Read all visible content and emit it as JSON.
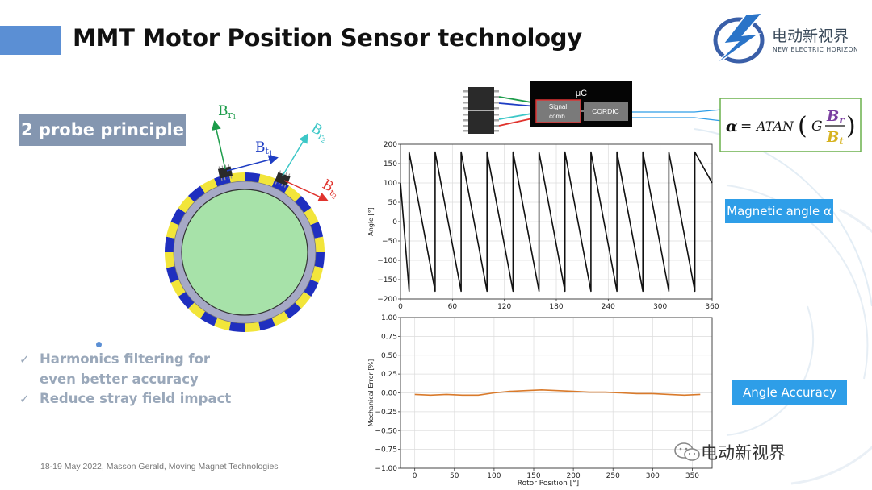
{
  "slide": {
    "title": "MMT Motor Position Sensor technology",
    "logo": {
      "cn": "电动新视界",
      "en": "NEW ELECTRIC HORIZON"
    },
    "probe_box": "2 probe principle",
    "bullets": [
      {
        "line1": "Harmonics filtering for",
        "line2": "even better accuracy"
      },
      {
        "line1": "Reduce stray field impact"
      }
    ],
    "check_glyph": "✓",
    "footer": "18-19 May 2022, Masson Gerald, Moving Magnet Technologies",
    "magnetic_angle_label": "Magnetic angle α",
    "angle_accuracy_label": "Angle Accuracy",
    "wechat_label": "电动新视界",
    "colors": {
      "accent_blue": "#2e9ee8",
      "title_bar": "#5b8fd4",
      "probe_box": "#8496b0",
      "error_line": "#d97a2b"
    }
  },
  "diagram": {
    "vectors": [
      {
        "main": "B",
        "sub": "r",
        "idx": "1",
        "color": "#1c9c4a"
      },
      {
        "main": "B",
        "sub": "t",
        "idx": "1",
        "color": "#1f3ec4"
      },
      {
        "main": "B",
        "sub": "r",
        "idx": "2",
        "color": "#3cc7c7"
      },
      {
        "main": "B",
        "sub": "t",
        "idx": "2",
        "color": "#e0332d"
      }
    ],
    "uc_title": "μC",
    "signal_comb": [
      "Signal",
      "comb."
    ],
    "cordic": "CORDIC",
    "formula": {
      "alpha": "α",
      "eq": "=",
      "func": "ATAN",
      "g": "G",
      "num_main": "B",
      "num_sub": "r",
      "den_main": "B",
      "den_sub": "t"
    }
  },
  "chart_data": [
    {
      "type": "line",
      "ylabel": "Angle [°]",
      "xlabel": "",
      "xlim": [
        0,
        360
      ],
      "ylim": [
        -200,
        200
      ],
      "xticks": [
        0,
        60,
        120,
        180,
        240,
        300,
        360
      ],
      "yticks": [
        200,
        150,
        100,
        50,
        0,
        -50,
        -100,
        -150,
        -200
      ],
      "grid": true,
      "series": [
        {
          "x": [
            0,
            10,
            10,
            40,
            40,
            70,
            70,
            100,
            100,
            130,
            130,
            160,
            160,
            190,
            190,
            220,
            220,
            250,
            250,
            280,
            280,
            310,
            310,
            340,
            340,
            360
          ],
          "values": [
            100,
            -180,
            180,
            -180,
            180,
            -180,
            180,
            -180,
            180,
            -180,
            180,
            -180,
            180,
            -180,
            180,
            -180,
            180,
            -180,
            180,
            -180,
            180,
            -180,
            180,
            -180,
            180,
            100
          ],
          "color": "#111111"
        }
      ]
    },
    {
      "type": "line",
      "ylabel": "Mechanical Error [%]",
      "xlabel": "Rotor Position [°]",
      "xlim": [
        -18,
        375
      ],
      "ylim": [
        -1.0,
        1.0
      ],
      "xticks": [
        0,
        50,
        100,
        150,
        200,
        250,
        300,
        350
      ],
      "yticks": [
        1.0,
        0.75,
        0.5,
        0.25,
        0.0,
        -0.25,
        -0.5,
        -0.75,
        -1.0
      ],
      "ytick_labels": [
        "1.00",
        "0.75",
        "0.50",
        "0.25",
        "0.00",
        "−0.25",
        "−0.50",
        "−0.75",
        "−1.00"
      ],
      "grid": true,
      "series": [
        {
          "x": [
            0,
            20,
            40,
            60,
            80,
            100,
            120,
            140,
            160,
            180,
            200,
            220,
            240,
            260,
            280,
            300,
            320,
            340,
            360
          ],
          "values": [
            -0.02,
            -0.03,
            -0.02,
            -0.03,
            -0.03,
            0.0,
            0.02,
            0.03,
            0.04,
            0.03,
            0.02,
            0.01,
            0.01,
            0.0,
            -0.01,
            -0.01,
            -0.02,
            -0.03,
            -0.02
          ],
          "color": "#d97a2b"
        }
      ]
    }
  ]
}
